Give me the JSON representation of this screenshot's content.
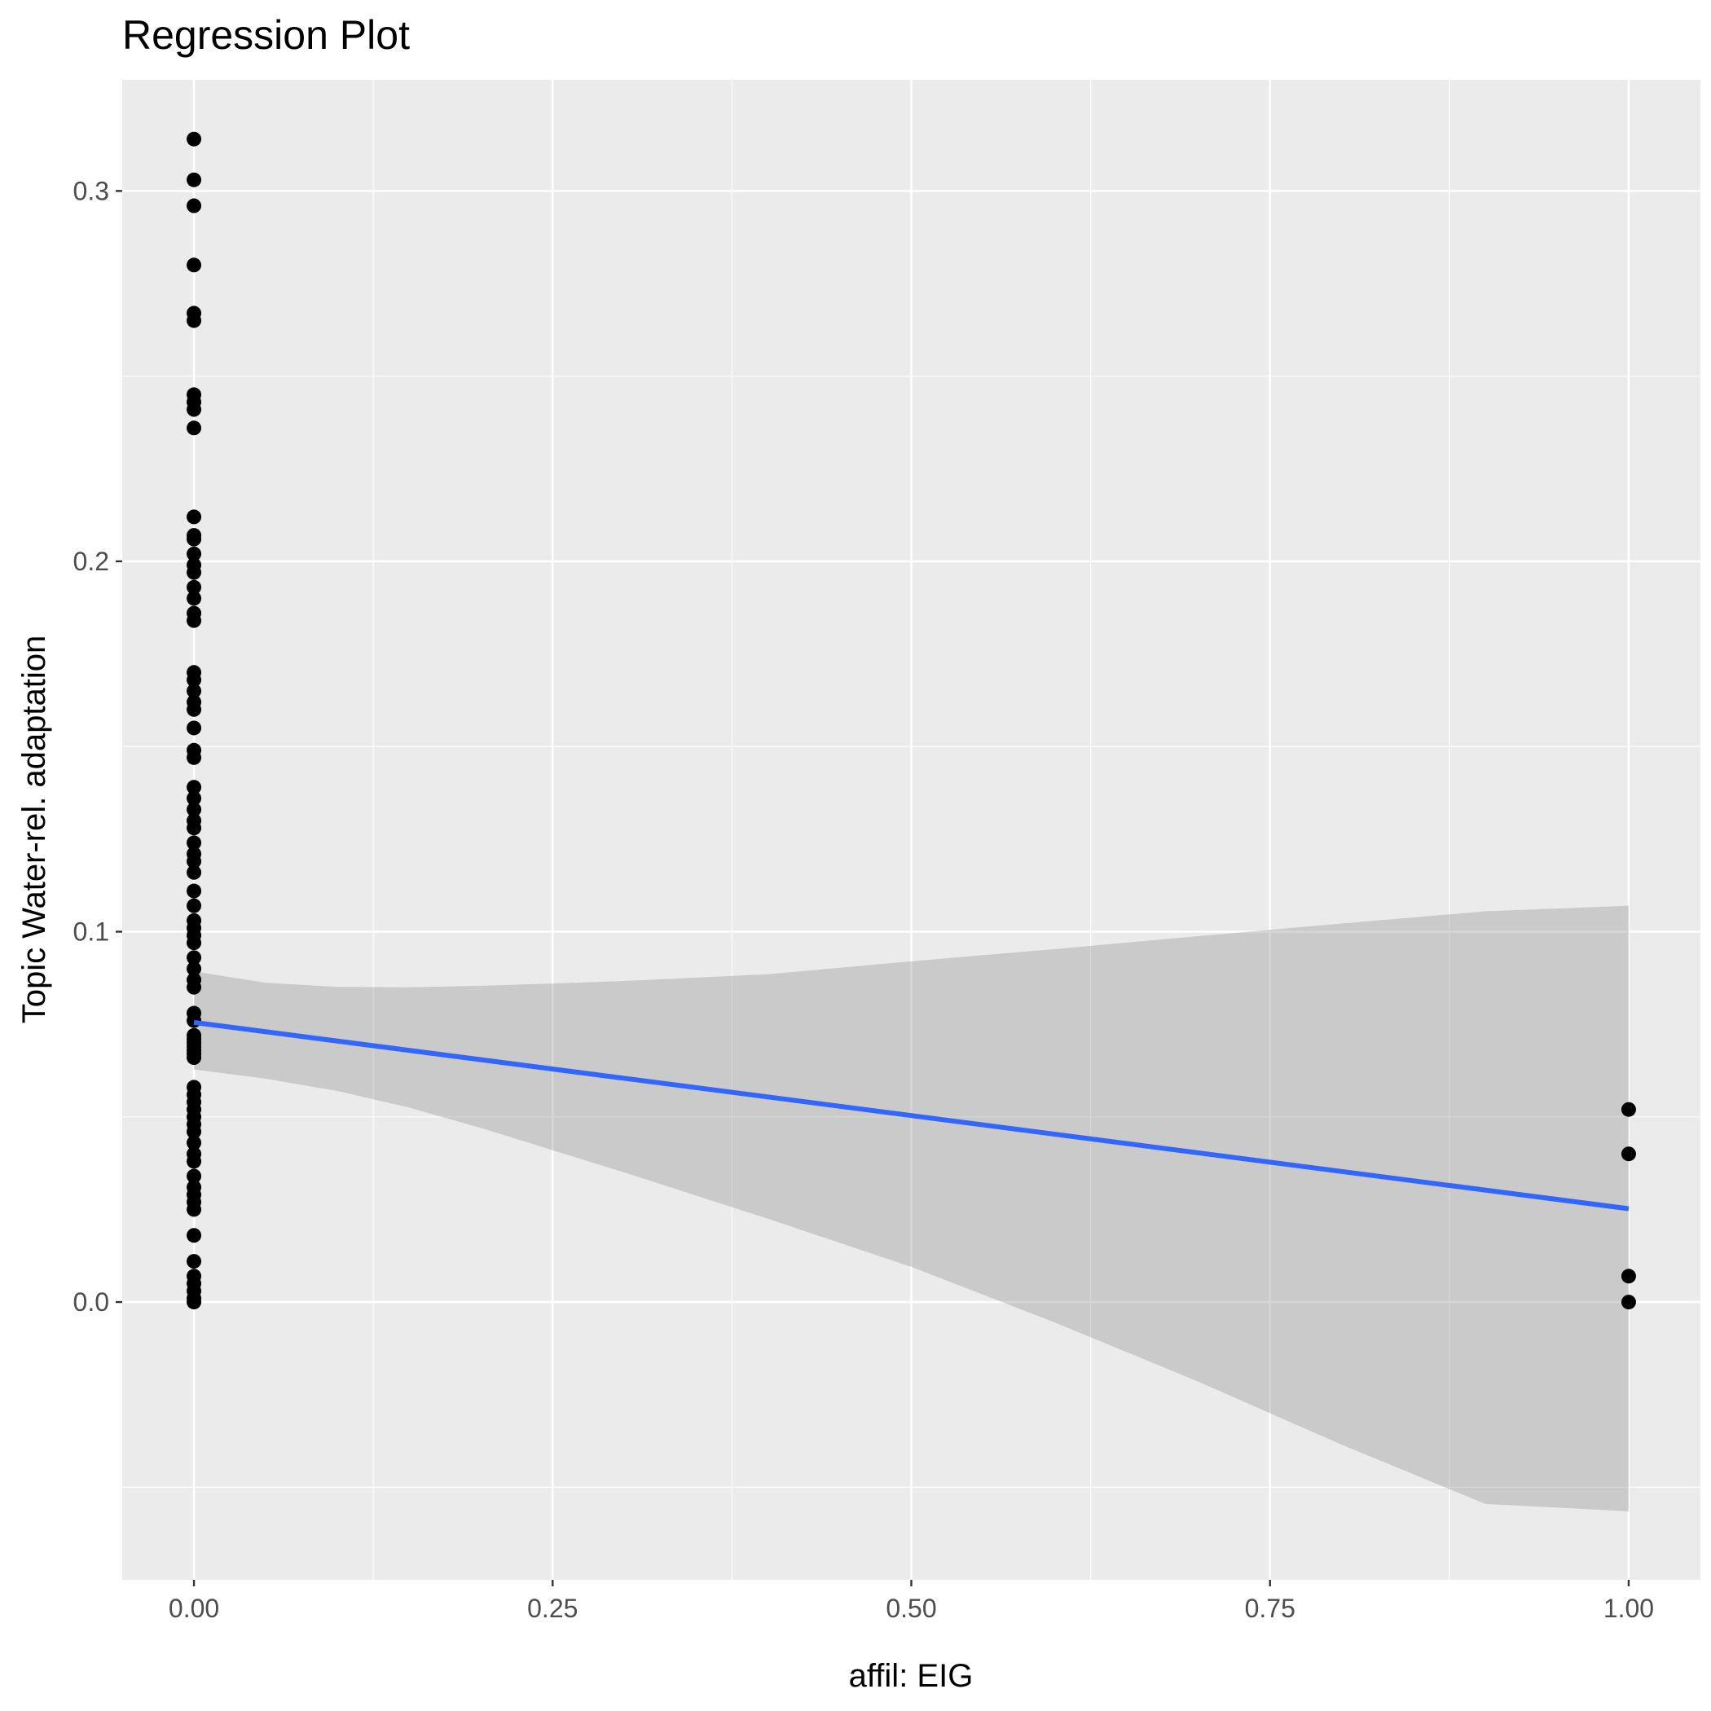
{
  "chart_data": {
    "type": "scatter",
    "title": "Regression Plot",
    "xlabel": "affil: EIG",
    "ylabel": "Topic Water-rel. adaptation",
    "xlim": [
      -0.05,
      1.05
    ],
    "ylim": [
      -0.075,
      0.33
    ],
    "x_ticks": [
      0.0,
      0.25,
      0.5,
      0.75,
      1.0
    ],
    "x_tick_labels": [
      "0.00",
      "0.25",
      "0.50",
      "0.75",
      "1.00"
    ],
    "y_ticks": [
      0.0,
      0.1,
      0.2,
      0.3
    ],
    "y_tick_labels": [
      "0.0",
      "0.1",
      "0.2",
      "0.3"
    ],
    "grid": true,
    "background": "#ebebeb",
    "grid_color": "#ffffff",
    "point_color": "#000000",
    "line_color": "#3366ff",
    "ribbon_color": "#999999",
    "points": [
      {
        "x": 0,
        "y": 0.314
      },
      {
        "x": 0,
        "y": 0.303
      },
      {
        "x": 0,
        "y": 0.296
      },
      {
        "x": 0,
        "y": 0.28
      },
      {
        "x": 0,
        "y": 0.267
      },
      {
        "x": 0,
        "y": 0.265
      },
      {
        "x": 0,
        "y": 0.245
      },
      {
        "x": 0,
        "y": 0.243
      },
      {
        "x": 0,
        "y": 0.241
      },
      {
        "x": 0,
        "y": 0.236
      },
      {
        "x": 0,
        "y": 0.212
      },
      {
        "x": 0,
        "y": 0.207
      },
      {
        "x": 0,
        "y": 0.206
      },
      {
        "x": 0,
        "y": 0.202
      },
      {
        "x": 0,
        "y": 0.199
      },
      {
        "x": 0,
        "y": 0.197
      },
      {
        "x": 0,
        "y": 0.193
      },
      {
        "x": 0,
        "y": 0.19
      },
      {
        "x": 0,
        "y": 0.186
      },
      {
        "x": 0,
        "y": 0.184
      },
      {
        "x": 0,
        "y": 0.17
      },
      {
        "x": 0,
        "y": 0.168
      },
      {
        "x": 0,
        "y": 0.165
      },
      {
        "x": 0,
        "y": 0.162
      },
      {
        "x": 0,
        "y": 0.16
      },
      {
        "x": 0,
        "y": 0.155
      },
      {
        "x": 0,
        "y": 0.149
      },
      {
        "x": 0,
        "y": 0.147
      },
      {
        "x": 0,
        "y": 0.139
      },
      {
        "x": 0,
        "y": 0.136
      },
      {
        "x": 0,
        "y": 0.133
      },
      {
        "x": 0,
        "y": 0.13
      },
      {
        "x": 0,
        "y": 0.128
      },
      {
        "x": 0,
        "y": 0.124
      },
      {
        "x": 0,
        "y": 0.121
      },
      {
        "x": 0,
        "y": 0.119
      },
      {
        "x": 0,
        "y": 0.116
      },
      {
        "x": 0,
        "y": 0.111
      },
      {
        "x": 0,
        "y": 0.107
      },
      {
        "x": 0,
        "y": 0.103
      },
      {
        "x": 0,
        "y": 0.101
      },
      {
        "x": 0,
        "y": 0.099
      },
      {
        "x": 0,
        "y": 0.097
      },
      {
        "x": 0,
        "y": 0.093
      },
      {
        "x": 0,
        "y": 0.09
      },
      {
        "x": 0,
        "y": 0.087
      },
      {
        "x": 0,
        "y": 0.085
      },
      {
        "x": 0,
        "y": 0.078
      },
      {
        "x": 0,
        "y": 0.076
      },
      {
        "x": 0,
        "y": 0.072
      },
      {
        "x": 0,
        "y": 0.071
      },
      {
        "x": 0,
        "y": 0.07
      },
      {
        "x": 0,
        "y": 0.069
      },
      {
        "x": 0,
        "y": 0.068
      },
      {
        "x": 0,
        "y": 0.067
      },
      {
        "x": 0,
        "y": 0.066
      },
      {
        "x": 0,
        "y": 0.058
      },
      {
        "x": 0,
        "y": 0.056
      },
      {
        "x": 0,
        "y": 0.054
      },
      {
        "x": 0,
        "y": 0.052
      },
      {
        "x": 0,
        "y": 0.05
      },
      {
        "x": 0,
        "y": 0.048
      },
      {
        "x": 0,
        "y": 0.046
      },
      {
        "x": 0,
        "y": 0.043
      },
      {
        "x": 0,
        "y": 0.04
      },
      {
        "x": 0,
        "y": 0.038
      },
      {
        "x": 0,
        "y": 0.034
      },
      {
        "x": 0,
        "y": 0.031
      },
      {
        "x": 0,
        "y": 0.029
      },
      {
        "x": 0,
        "y": 0.027
      },
      {
        "x": 0,
        "y": 0.025
      },
      {
        "x": 0,
        "y": 0.018
      },
      {
        "x": 0,
        "y": 0.011
      },
      {
        "x": 0,
        "y": 0.007
      },
      {
        "x": 0,
        "y": 0.005
      },
      {
        "x": 0,
        "y": 0.003
      },
      {
        "x": 0,
        "y": 0.001
      },
      {
        "x": 0,
        "y": 0.0
      },
      {
        "x": 1,
        "y": 0.052
      },
      {
        "x": 1,
        "y": 0.04
      },
      {
        "x": 1,
        "y": 0.007
      },
      {
        "x": 1,
        "y": 0.0
      }
    ],
    "regression": {
      "x": [
        0,
        1
      ],
      "y": [
        0.0755,
        0.0252
      ]
    },
    "confidence_band": {
      "x": [
        0.0,
        0.05,
        0.1,
        0.15,
        0.2,
        0.25,
        0.3,
        0.4,
        0.5,
        0.6,
        0.7,
        0.8,
        0.9,
        1.0
      ],
      "upper": [
        0.0893,
        0.0862,
        0.0851,
        0.085,
        0.0854,
        0.086,
        0.0867,
        0.0885,
        0.092,
        0.0953,
        0.0988,
        0.1022,
        0.1055,
        0.107
      ],
      "lower": [
        0.0628,
        0.0603,
        0.057,
        0.0525,
        0.047,
        0.041,
        0.035,
        0.0225,
        0.0095,
        -0.0055,
        -0.0215,
        -0.0385,
        -0.0545,
        -0.0565
      ]
    }
  }
}
